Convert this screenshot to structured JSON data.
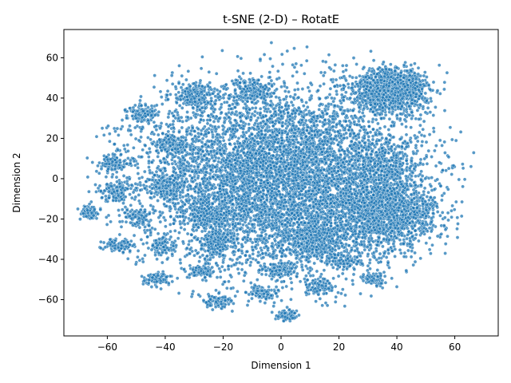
{
  "chart_data": {
    "type": "scatter",
    "title": "t-SNE (2-D) – RotatE",
    "xlabel": "Dimension 1",
    "ylabel": "Dimension 2",
    "xlim": [
      -75,
      75
    ],
    "ylim": [
      -78,
      74
    ],
    "xticks": [
      -60,
      -40,
      -20,
      0,
      20,
      40,
      60
    ],
    "yticks": [
      -60,
      -40,
      -20,
      0,
      20,
      40,
      60
    ],
    "grid": false,
    "point_color": "#1f77b4",
    "point_edge_color": "#ffffff",
    "approx_point_count": 14000,
    "clusters": [
      {
        "cx": 0,
        "cy": 0,
        "sx": 24,
        "sy": 22,
        "n": 7000
      },
      {
        "cx": 38,
        "cy": 44,
        "sx": 6,
        "sy": 5,
        "n": 1400
      },
      {
        "cx": 37,
        "cy": -17,
        "sx": 8,
        "sy": 8,
        "n": 1300
      },
      {
        "cx": 12,
        "cy": -30,
        "sx": 6,
        "sy": 5,
        "n": 450
      },
      {
        "cx": 35,
        "cy": 7,
        "sx": 6,
        "sy": 6,
        "n": 300
      },
      {
        "cx": -30,
        "cy": 41,
        "sx": 4,
        "sy": 3,
        "n": 220
      },
      {
        "cx": -10,
        "cy": 44,
        "sx": 4,
        "sy": 3,
        "n": 180
      },
      {
        "cx": -48,
        "cy": 32,
        "sx": 2.5,
        "sy": 2,
        "n": 110
      },
      {
        "cx": -38,
        "cy": 17,
        "sx": 3,
        "sy": 3,
        "n": 150
      },
      {
        "cx": -58,
        "cy": 8,
        "sx": 2.5,
        "sy": 2.5,
        "n": 110
      },
      {
        "cx": -57,
        "cy": -6,
        "sx": 2.5,
        "sy": 2.5,
        "n": 110
      },
      {
        "cx": -66,
        "cy": -17,
        "sx": 1.6,
        "sy": 1.6,
        "n": 80
      },
      {
        "cx": -49,
        "cy": -19,
        "sx": 2,
        "sy": 2,
        "n": 100
      },
      {
        "cx": -56,
        "cy": -33,
        "sx": 2.5,
        "sy": 1.6,
        "n": 110
      },
      {
        "cx": -41,
        "cy": -33,
        "sx": 2,
        "sy": 2,
        "n": 90
      },
      {
        "cx": -43,
        "cy": -50,
        "sx": 2,
        "sy": 1.5,
        "n": 90
      },
      {
        "cx": -28,
        "cy": -46,
        "sx": 2.5,
        "sy": 1.8,
        "n": 100
      },
      {
        "cx": -22,
        "cy": -61,
        "sx": 2.5,
        "sy": 1.8,
        "n": 100
      },
      {
        "cx": -7,
        "cy": -57,
        "sx": 2.5,
        "sy": 2,
        "n": 100
      },
      {
        "cx": 2,
        "cy": -68,
        "sx": 2,
        "sy": 1.2,
        "n": 80
      },
      {
        "cx": 13,
        "cy": -54,
        "sx": 2.5,
        "sy": 2,
        "n": 110
      },
      {
        "cx": 32,
        "cy": -50,
        "sx": 2,
        "sy": 1.5,
        "n": 90
      },
      {
        "cx": 22,
        "cy": -41,
        "sx": 2.5,
        "sy": 2,
        "n": 110
      },
      {
        "cx": -22,
        "cy": -32,
        "sx": 3,
        "sy": 3,
        "n": 200
      },
      {
        "cx": 0,
        "cy": -45,
        "sx": 3,
        "sy": 2,
        "n": 120
      },
      {
        "cx": -40,
        "cy": -4,
        "sx": 3,
        "sy": 3,
        "n": 150
      },
      {
        "cx": -25,
        "cy": -18,
        "sx": 4,
        "sy": 3,
        "n": 200
      }
    ]
  }
}
